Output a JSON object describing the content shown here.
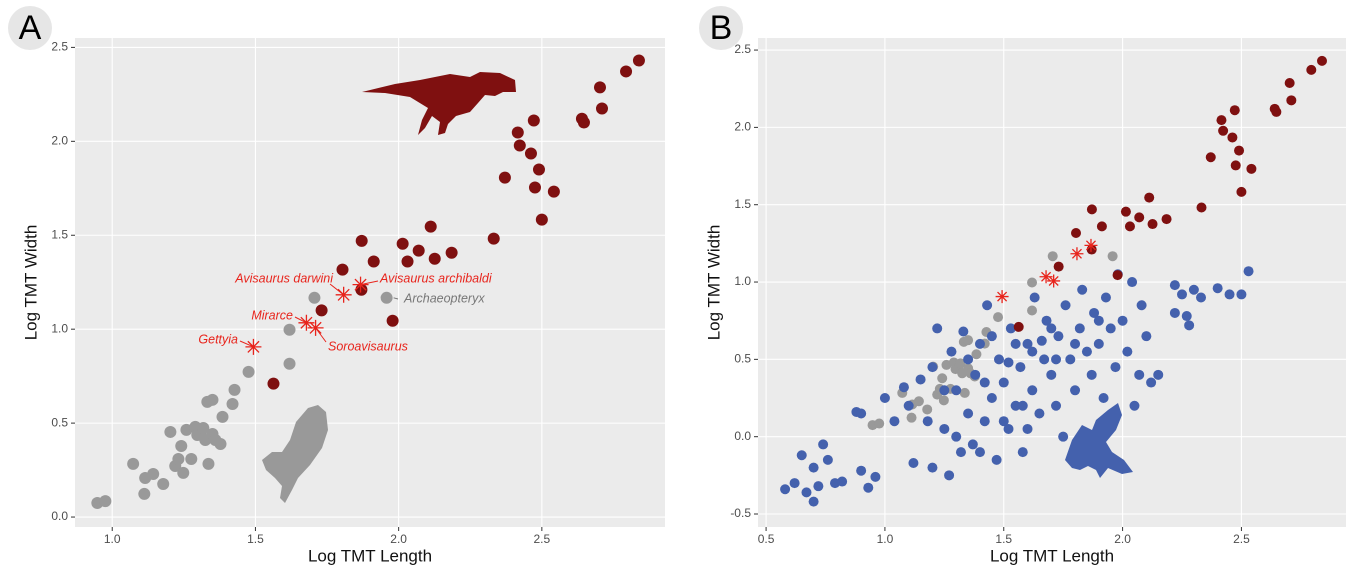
{
  "chart_data": [
    {
      "type": "scatter",
      "panel": "A",
      "xlabel": "Log TMT Length",
      "ylabel": "Log TMT Width",
      "xlim": [
        0.87,
        2.93
      ],
      "ylim": [
        -0.053,
        2.55
      ],
      "xticks": [
        {
          "value": 1,
          "label": "1.0"
        },
        {
          "value": 1.5,
          "label": "1.5"
        },
        {
          "value": 2,
          "label": "2.0"
        },
        {
          "value": 2.5,
          "label": "2.5"
        }
      ],
      "yticks": [
        {
          "value": 0,
          "label": "0.0"
        },
        {
          "value": 0.5,
          "label": "0.5"
        },
        {
          "value": 1,
          "label": "1.0"
        },
        {
          "value": 1.5,
          "label": "1.5"
        },
        {
          "value": 2,
          "label": "2.0"
        },
        {
          "value": 2.5,
          "label": "2.5"
        }
      ],
      "grid": true,
      "series": [
        {
          "color": "#999999",
          "marker": "circle",
          "x": [
            0.948,
            0.976,
            1.073,
            1.112,
            1.115,
            1.143,
            1.178,
            1.203,
            1.22,
            1.231,
            1.241,
            1.248,
            1.259,
            1.276,
            1.29,
            1.297,
            1.308,
            1.318,
            1.325,
            1.336,
            1.332,
            1.35,
            1.35,
            1.36,
            1.378,
            1.385,
            1.42,
            1.427,
            1.476,
            1.619,
            1.619,
            1.706,
            1.958
          ],
          "y": [
            0.075,
            0.085,
            0.283,
            0.123,
            0.208,
            0.229,
            0.176,
            0.453,
            0.272,
            0.309,
            0.378,
            0.235,
            0.464,
            0.309,
            0.48,
            0.437,
            0.442,
            0.474,
            0.41,
            0.283,
            0.613,
            0.624,
            0.442,
            0.41,
            0.389,
            0.533,
            0.602,
            0.677,
            0.773,
            0.816,
            0.997,
            1.167,
            1.167
          ]
        },
        {
          "color": "#7f1010",
          "marker": "circle",
          "x": [
            1.563,
            1.731,
            1.804,
            1.871,
            1.87,
            1.913,
            1.979,
            2.014,
            2.031,
            2.07,
            2.112,
            2.126,
            2.185,
            2.332,
            2.371,
            2.416,
            2.423,
            2.462,
            2.472,
            2.49,
            2.476,
            2.542,
            2.5,
            2.64,
            2.647,
            2.703,
            2.71,
            2.794,
            2.839
          ],
          "y": [
            0.71,
            1.1,
            1.317,
            1.47,
            1.21,
            1.36,
            1.045,
            1.455,
            1.36,
            1.418,
            1.546,
            1.375,
            1.407,
            1.482,
            1.807,
            2.047,
            1.978,
            1.935,
            2.111,
            1.85,
            1.754,
            1.732,
            1.583,
            2.12,
            2.1,
            2.287,
            2.175,
            2.372,
            2.43
          ]
        },
        {
          "color": "#e8241c",
          "marker": "asterisk",
          "x": [
            1.493,
            1.678,
            1.71,
            1.808,
            1.867
          ],
          "y": [
            0.906,
            1.034,
            1.007,
            1.183,
            1.237
          ]
        }
      ],
      "annotations": [
        {
          "text": "Gettyia",
          "color": "#e8241c"
        },
        {
          "text": "Mirarce",
          "color": "#e8241c"
        },
        {
          "text": "Soroavisaurus",
          "color": "#e8241c"
        },
        {
          "text": "Avisaurus darwini",
          "color": "#e8241c"
        },
        {
          "text": "Avisaurus archibaldi",
          "color": "#e8241c"
        },
        {
          "text": "Archaeopteryx",
          "color": "#777777"
        }
      ]
    },
    {
      "type": "scatter",
      "panel": "B",
      "xlabel": "Log TMT Length",
      "ylabel": "Log TMT Width",
      "xlim": [
        0.466,
        2.94
      ],
      "ylim": [
        -0.584,
        2.578
      ],
      "xticks": [
        0.5,
        {
          "value": 1,
          "label": "1.0"
        },
        1.5,
        {
          "value": 2,
          "label": "2.0"
        },
        2.5
      ],
      "yticks": [
        -0.5,
        {
          "value": 0,
          "label": "0.0"
        },
        0.5,
        {
          "value": 1,
          "label": "1.0"
        },
        1.5,
        {
          "value": 2,
          "label": "2.0"
        },
        2.5
      ],
      "grid": true,
      "series": [
        {
          "color": "#999999",
          "marker": "circle",
          "x": [
            0.948,
            0.976,
            1.073,
            1.112,
            1.115,
            1.143,
            1.178,
            1.203,
            1.22,
            1.231,
            1.241,
            1.248,
            1.259,
            1.276,
            1.29,
            1.297,
            1.308,
            1.318,
            1.325,
            1.336,
            1.332,
            1.35,
            1.35,
            1.36,
            1.378,
            1.385,
            1.42,
            1.427,
            1.476,
            1.619,
            1.619,
            1.706,
            1.958
          ],
          "y": [
            0.075,
            0.085,
            0.283,
            0.123,
            0.208,
            0.229,
            0.176,
            0.453,
            0.272,
            0.309,
            0.378,
            0.235,
            0.464,
            0.309,
            0.48,
            0.437,
            0.442,
            0.474,
            0.41,
            0.283,
            0.613,
            0.624,
            0.442,
            0.41,
            0.389,
            0.533,
            0.602,
            0.677,
            0.773,
            0.816,
            0.997,
            1.167,
            1.167
          ]
        },
        {
          "color": "#4461ad",
          "marker": "circle",
          "x": [
            0.58,
            0.62,
            0.65,
            0.67,
            0.7,
            0.72,
            0.74,
            0.76,
            0.79,
            0.82,
            0.7,
            0.88,
            0.9,
            0.9,
            0.93,
            0.96,
            1.0,
            1.04,
            1.08,
            1.1,
            1.12,
            1.15,
            1.18,
            1.2,
            1.22,
            1.2,
            1.25,
            1.27,
            1.28,
            1.3,
            1.32,
            1.33,
            1.35,
            1.37,
            1.38,
            1.4,
            1.42,
            1.43,
            1.45,
            1.47,
            1.48,
            1.5,
            1.52,
            1.53,
            1.55,
            1.57,
            1.58,
            1.6,
            1.62,
            1.63,
            1.65,
            1.67,
            1.68,
            1.7,
            1.72,
            1.73,
            1.75,
            1.76,
            1.78,
            1.8,
            1.82,
            1.83,
            1.85,
            1.87,
            1.88,
            1.9,
            1.92,
            1.93,
            1.95,
            1.97,
            1.98,
            2.0,
            2.02,
            2.04,
            2.05,
            2.07,
            2.08,
            2.1,
            2.12,
            2.15,
            2.22,
            2.22,
            2.25,
            2.27,
            2.28,
            2.3,
            2.33,
            2.4,
            2.45,
            2.5,
            2.53,
            1.55,
            1.45,
            1.35,
            1.25,
            1.5,
            1.6,
            1.4,
            1.3,
            1.7,
            1.8,
            1.9,
            1.62,
            1.52,
            1.42,
            1.72,
            1.66,
            1.58
          ],
          "y": [
            -0.34,
            -0.3,
            -0.12,
            -0.36,
            -0.42,
            -0.32,
            -0.05,
            -0.15,
            -0.3,
            -0.29,
            -0.2,
            0.16,
            0.15,
            -0.22,
            -0.33,
            -0.26,
            0.25,
            0.1,
            0.32,
            0.2,
            -0.17,
            0.37,
            0.1,
            -0.2,
            0.7,
            0.45,
            0.05,
            -0.25,
            0.55,
            0.3,
            -0.1,
            0.68,
            0.15,
            -0.05,
            0.4,
            0.6,
            0.1,
            0.85,
            0.25,
            -0.15,
            0.5,
            0.35,
            0.05,
            0.7,
            0.2,
            0.45,
            -0.1,
            0.6,
            0.3,
            0.9,
            0.15,
            0.5,
            0.75,
            0.4,
            0.2,
            0.65,
            0.0,
            0.85,
            0.5,
            0.3,
            0.7,
            0.95,
            0.55,
            0.4,
            0.8,
            0.6,
            0.25,
            0.9,
            0.7,
            0.45,
            1.05,
            0.75,
            0.55,
            1.0,
            0.2,
            0.4,
            0.85,
            0.65,
            0.35,
            0.4,
            0.98,
            0.8,
            0.92,
            0.78,
            0.72,
            0.95,
            0.9,
            0.96,
            0.92,
            0.92,
            1.07,
            0.6,
            0.65,
            0.5,
            0.3,
            0.1,
            0.05,
            -0.1,
            0.0,
            0.7,
            0.6,
            0.75,
            0.55,
            0.48,
            0.35,
            0.5,
            0.62,
            0.2
          ]
        },
        {
          "color": "#7f1010",
          "marker": "circle",
          "x": [
            1.563,
            1.731,
            1.804,
            1.871,
            1.87,
            1.913,
            1.979,
            2.014,
            2.031,
            2.07,
            2.112,
            2.126,
            2.185,
            2.332,
            2.371,
            2.416,
            2.423,
            2.462,
            2.472,
            2.49,
            2.476,
            2.542,
            2.5,
            2.64,
            2.647,
            2.703,
            2.71,
            2.794,
            2.839
          ],
          "y": [
            0.71,
            1.1,
            1.317,
            1.47,
            1.21,
            1.36,
            1.045,
            1.455,
            1.36,
            1.418,
            1.546,
            1.375,
            1.407,
            1.482,
            1.807,
            2.047,
            1.978,
            1.935,
            2.111,
            1.85,
            1.754,
            1.732,
            1.583,
            2.12,
            2.1,
            2.287,
            2.175,
            2.372,
            2.43
          ]
        },
        {
          "color": "#e8241c",
          "marker": "asterisk",
          "x": [
            1.493,
            1.678,
            1.71,
            1.808,
            1.867
          ],
          "y": [
            0.906,
            1.034,
            1.007,
            1.183,
            1.237
          ]
        }
      ]
    }
  ]
}
